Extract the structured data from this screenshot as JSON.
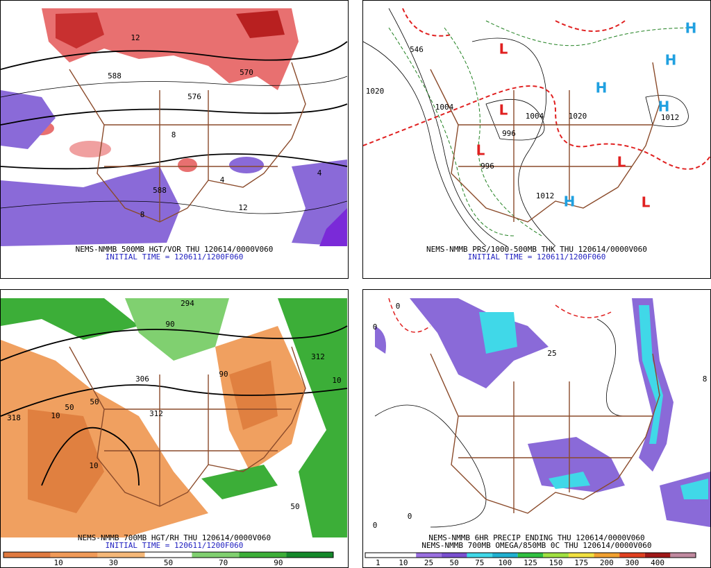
{
  "panels": [
    {
      "caption": "NEMS-NMMB 500MB HGT/VOR THU 120614/0000V060",
      "initial_time": "INITIAL TIME = 120611/1200F060",
      "labels": [
        "588",
        "576",
        "570",
        "12",
        "8",
        "4",
        "588",
        "12",
        "8",
        "4"
      ]
    },
    {
      "caption": "NEMS-NMMB PRS/1000-500MB THK THU 120614/0000V060",
      "initial_time": "INITIAL TIME = 120611/1200F060",
      "labels": [
        "L",
        "L",
        "L",
        "L",
        "L",
        "H",
        "H",
        "H",
        "H",
        "H",
        "1020",
        "1004",
        "996",
        "996",
        "1012",
        "1012",
        "1020",
        "1004",
        "546"
      ]
    },
    {
      "caption": "NEMS-NMMB 700MB HGT/RH THU 120614/0000V060",
      "initial_time": "INITIAL TIME = 120611/1200F060",
      "labels": [
        "294",
        "306",
        "312",
        "318",
        "312",
        "50",
        "50",
        "10",
        "10",
        "90",
        "90",
        "50",
        "10"
      ],
      "colorbar": {
        "colors": [
          "#e07a40",
          "#f09a58",
          "#f5b878",
          "#ffffff",
          "#80d070",
          "#3cae38",
          "#14882a"
        ],
        "labels": [
          "10",
          "30",
          "50",
          "70",
          "90"
        ]
      }
    },
    {
      "captions": [
        "NEMS-NMMB 6HR PRECIP ENDING THU 120614/0000V060",
        "NEMS-NMMB 700MB OMEGA/850MB 0C THU 120614/0000V060"
      ],
      "labels": [
        "0",
        "0",
        "25",
        "0",
        "0",
        "8"
      ],
      "colorbar": {
        "colors": [
          "#ffffff",
          "#ffffff",
          "#9a70e0",
          "#7a50d0",
          "#40d8e8",
          "#20b0d0",
          "#30c040",
          "#a0e040",
          "#f0e040",
          "#f0a030",
          "#e04020",
          "#a01818",
          "#c08aa0"
        ],
        "labels": [
          "1",
          "10",
          "25",
          "50",
          "75",
          "100",
          "125",
          "150",
          "175",
          "200",
          "300",
          "400"
        ]
      }
    }
  ]
}
